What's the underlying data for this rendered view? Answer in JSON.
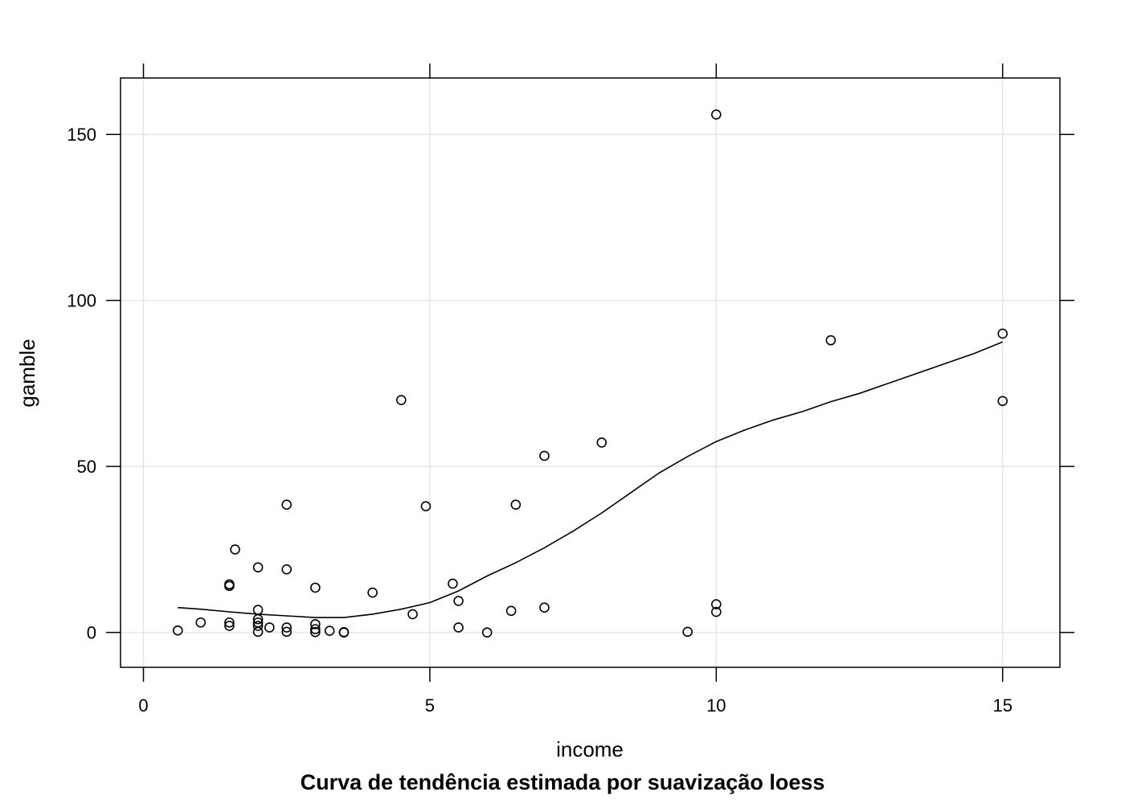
{
  "chart_data": {
    "type": "scatter",
    "title": "",
    "subtitle": "Curva de tendência estimada por suavização loess",
    "xlabel": "income",
    "ylabel": "gamble",
    "xlim": [
      -0.4,
      16.0
    ],
    "ylim": [
      -10.5,
      167
    ],
    "xticks": [
      0,
      5,
      10,
      15
    ],
    "yticks": [
      0,
      50,
      100,
      150
    ],
    "grid": true,
    "points": [
      [
        0.6,
        0.6
      ],
      [
        1.0,
        3.0
      ],
      [
        1.5,
        3.0
      ],
      [
        1.5,
        2.0
      ],
      [
        1.5,
        14.5
      ],
      [
        1.5,
        14.0
      ],
      [
        1.6,
        25.0
      ],
      [
        2.0,
        19.6
      ],
      [
        2.0,
        6.8
      ],
      [
        2.0,
        4.0
      ],
      [
        2.0,
        3.0
      ],
      [
        2.0,
        2.0
      ],
      [
        2.0,
        0.2
      ],
      [
        2.2,
        1.5
      ],
      [
        2.5,
        38.5
      ],
      [
        2.5,
        19.0
      ],
      [
        2.5,
        1.5
      ],
      [
        2.5,
        0.2
      ],
      [
        3.0,
        13.5
      ],
      [
        3.0,
        2.5
      ],
      [
        3.0,
        1.0
      ],
      [
        3.0,
        0.1
      ],
      [
        3.25,
        0.5
      ],
      [
        3.5,
        0.1
      ],
      [
        3.5,
        0.0
      ],
      [
        4.0,
        12.0
      ],
      [
        4.5,
        70.0
      ],
      [
        4.7,
        5.5
      ],
      [
        4.93,
        38.0
      ],
      [
        5.4,
        14.7
      ],
      [
        5.5,
        9.5
      ],
      [
        5.5,
        1.5
      ],
      [
        6.0,
        0.0
      ],
      [
        6.42,
        6.5
      ],
      [
        6.5,
        38.5
      ],
      [
        7.0,
        53.2
      ],
      [
        7.0,
        7.5
      ],
      [
        8.0,
        57.2
      ],
      [
        9.5,
        0.2
      ],
      [
        10.0,
        156.0
      ],
      [
        10.0,
        8.5
      ],
      [
        10.0,
        6.2
      ],
      [
        12.0,
        88.0
      ],
      [
        15.0,
        90.0
      ],
      [
        15.0,
        69.7
      ]
    ],
    "trend": {
      "method": "loess",
      "x": [
        0.6,
        1.0,
        1.5,
        2.0,
        2.5,
        3.0,
        3.5,
        4.0,
        4.5,
        5.0,
        5.5,
        6.0,
        6.5,
        7.0,
        7.5,
        8.0,
        8.5,
        9.0,
        9.5,
        10.0,
        10.5,
        11.0,
        11.5,
        12.0,
        12.5,
        13.0,
        13.5,
        14.0,
        14.5,
        15.0
      ],
      "y": [
        7.5,
        7.0,
        6.2,
        5.5,
        5.0,
        4.5,
        4.5,
        5.5,
        7.0,
        9.0,
        12.5,
        17.0,
        21.0,
        25.5,
        30.5,
        36.0,
        42.0,
        48.0,
        53.0,
        57.5,
        61.0,
        64.0,
        66.5,
        69.5,
        72.0,
        75.0,
        78.0,
        81.0,
        84.0,
        87.5
      ]
    }
  }
}
